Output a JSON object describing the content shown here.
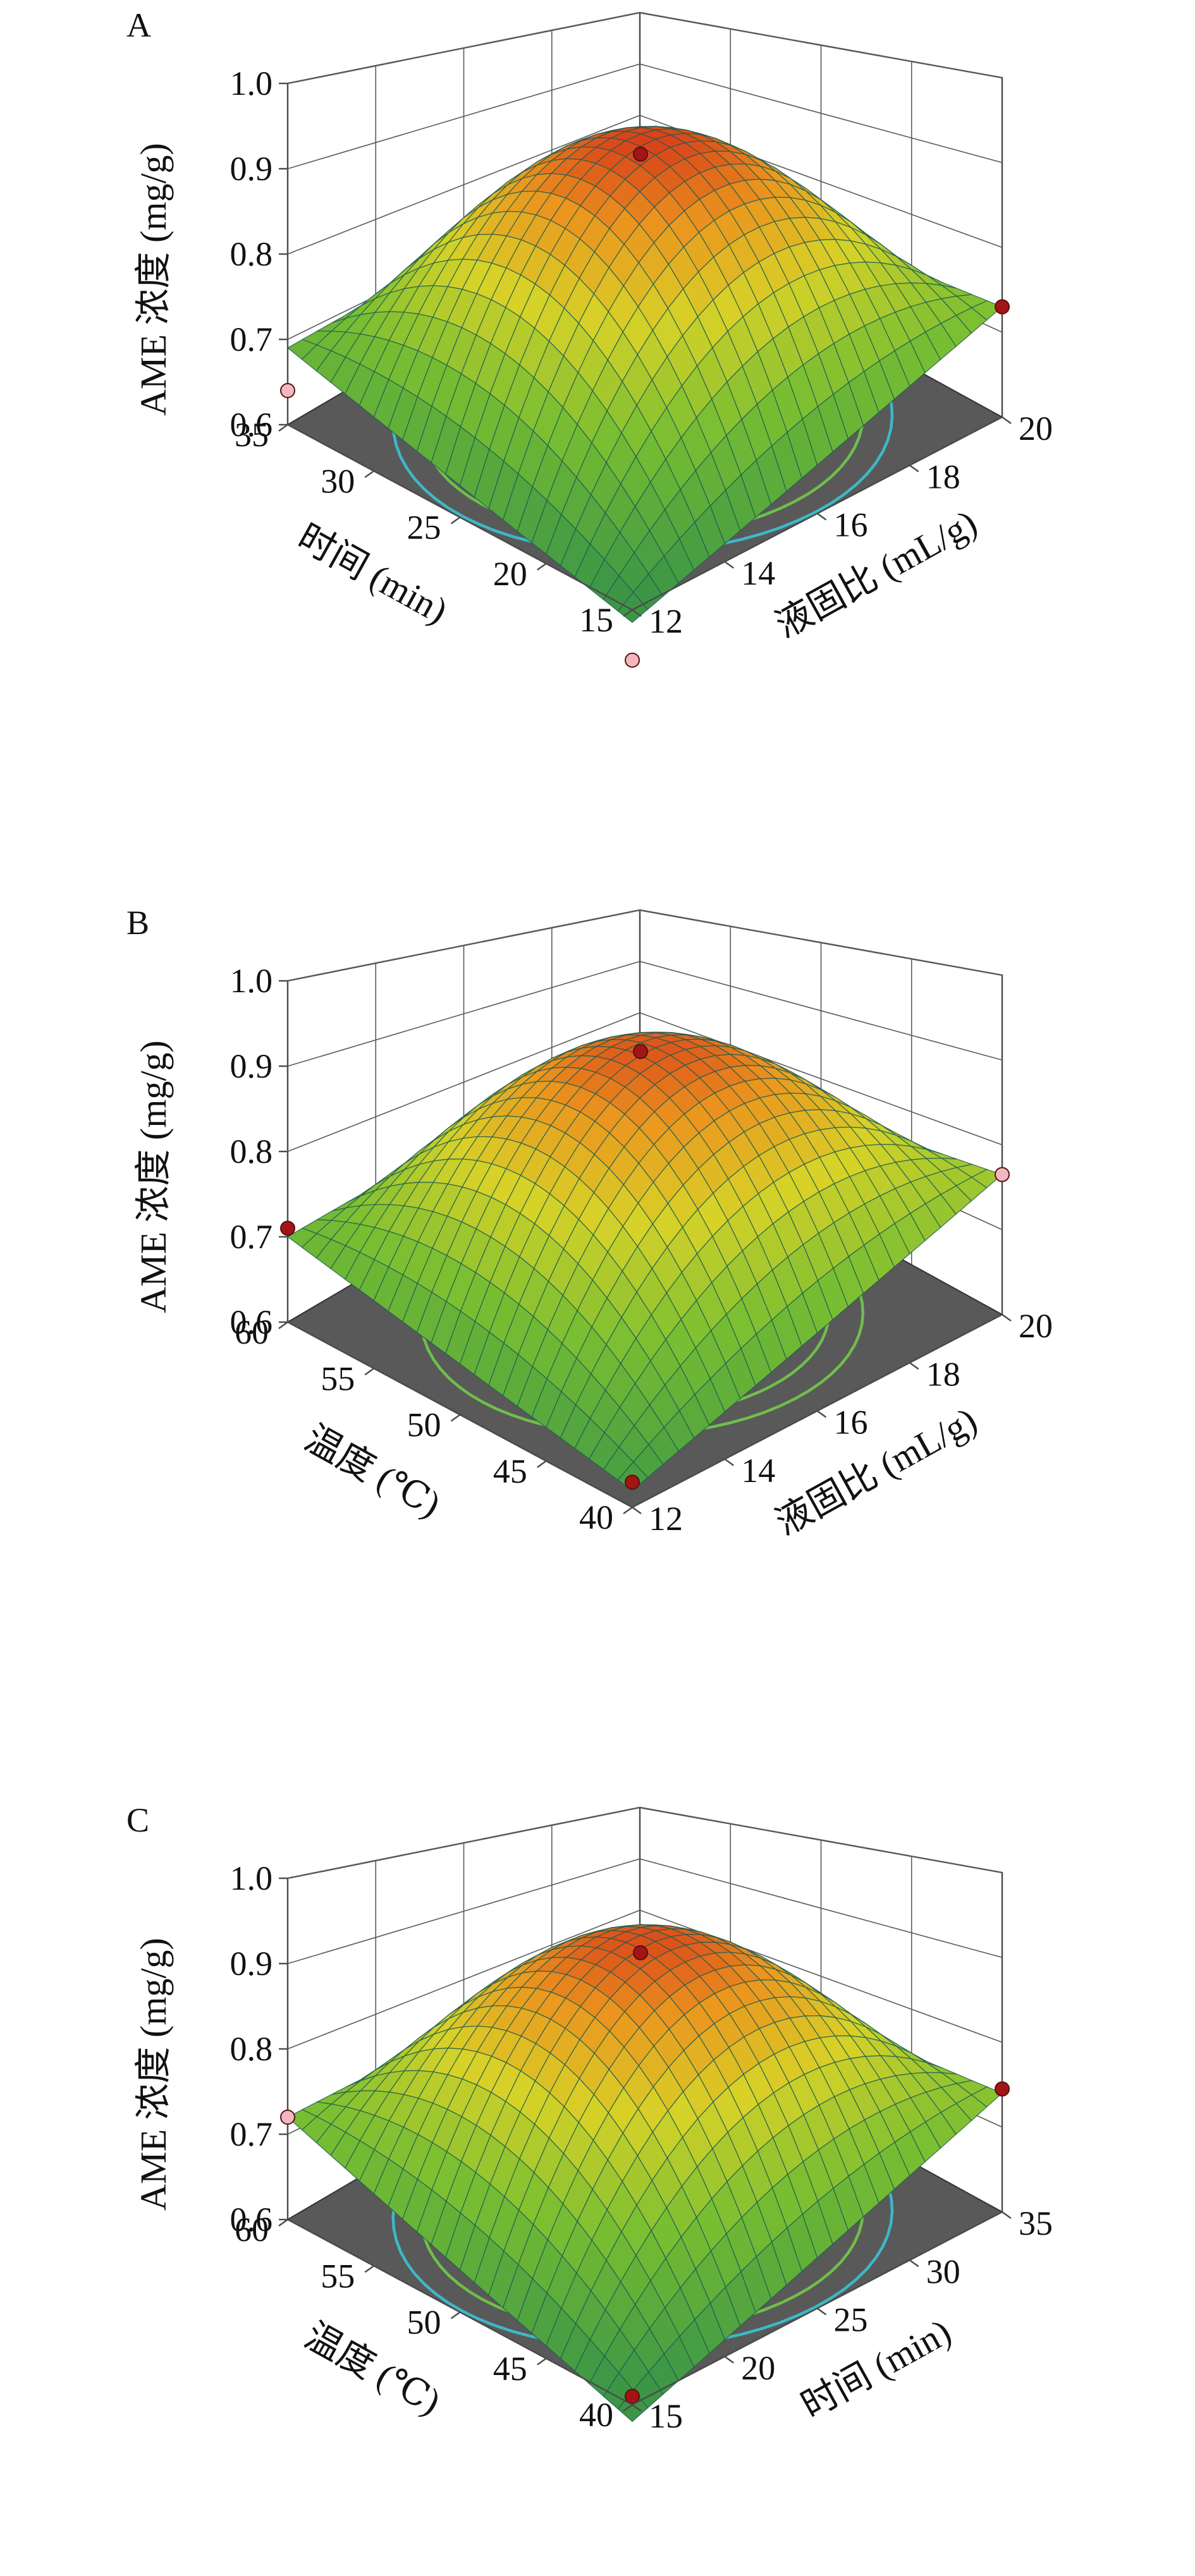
{
  "chart_data": [
    {
      "type": "surface3d",
      "panel_label": "A",
      "zlabel": "AME 浓度 (mg/g)",
      "xlabel": "液固比 (mL/g)",
      "ylabel": "时间 (min)",
      "x_ticks": [
        12,
        14,
        16,
        18,
        20
      ],
      "y_ticks": [
        15,
        20,
        25,
        30,
        35
      ],
      "z_ticks": [
        0.6,
        0.7,
        0.8,
        0.9,
        1.0
      ],
      "xlim": [
        12,
        20
      ],
      "ylim": [
        15,
        35
      ],
      "zlim": [
        0.6,
        1.0
      ],
      "surface": {
        "peak_x": 16,
        "peak_y": 25,
        "peak_z": 0.955,
        "corners": {
          "xmin_ymin": 0.585,
          "xmax_ymin": 0.73,
          "xmin_ymax": 0.69,
          "xmax_ymax": 0.72
        }
      },
      "design_points": [
        {
          "x": 16,
          "y": 25,
          "z": 0.945,
          "color": "#a31515"
        },
        {
          "x": 20,
          "y": 15,
          "z": 0.73,
          "color": "#a31515"
        },
        {
          "x": 12,
          "y": 35,
          "z": 0.64,
          "color": "#f2b8c0"
        },
        {
          "x": 12,
          "y": 15,
          "z": 0.54,
          "color": "#f2b8c0"
        }
      ],
      "contours": {
        "orange": [
          0.9,
          0.86
        ],
        "yellow": [
          0.8
        ],
        "green": [
          0.7,
          0.66
        ],
        "cyan": [
          0.6
        ]
      }
    },
    {
      "type": "surface3d",
      "panel_label": "B",
      "zlabel": "AME 浓度 (mg/g)",
      "xlabel": "液固比 (mL/g)",
      "ylabel": "温度 (℃)",
      "x_ticks": [
        12,
        14,
        16,
        18,
        20
      ],
      "y_ticks": [
        40,
        45,
        50,
        55,
        60
      ],
      "z_ticks": [
        0.6,
        0.7,
        0.8,
        0.9,
        1.0
      ],
      "xlim": [
        12,
        20
      ],
      "ylim": [
        40,
        60
      ],
      "zlim": [
        0.6,
        1.0
      ],
      "surface": {
        "peak_x": 16,
        "peak_y": 50,
        "peak_z": 0.94,
        "corners": {
          "xmin_ymin": 0.62,
          "xmax_ymin": 0.765,
          "xmin_ymax": 0.7,
          "xmax_ymax": 0.74
        }
      },
      "design_points": [
        {
          "x": 16,
          "y": 50,
          "z": 0.945,
          "color": "#a31515"
        },
        {
          "x": 12,
          "y": 60,
          "z": 0.71,
          "color": "#a31515"
        },
        {
          "x": 20,
          "y": 40,
          "z": 0.765,
          "color": "#f2b8c0"
        },
        {
          "x": 12,
          "y": 40,
          "z": 0.63,
          "color": "#a31515"
        }
      ],
      "contours": {
        "orange": [
          0.9,
          0.86
        ],
        "yellow": [
          0.8
        ],
        "green": [
          0.7,
          0.66
        ],
        "cyan": []
      }
    },
    {
      "type": "surface3d",
      "panel_label": "C",
      "zlabel": "AME 浓度 (mg/g)",
      "xlabel": "时间 (min)",
      "ylabel": "温度 (℃)",
      "x_ticks": [
        15,
        20,
        25,
        30,
        35
      ],
      "y_ticks": [
        40,
        45,
        50,
        55,
        60
      ],
      "z_ticks": [
        0.6,
        0.7,
        0.8,
        0.9,
        1.0
      ],
      "xlim": [
        15,
        35
      ],
      "ylim": [
        40,
        60
      ],
      "zlim": [
        0.6,
        1.0
      ],
      "surface": {
        "peak_x": 25,
        "peak_y": 50,
        "peak_z": 0.945,
        "corners": {
          "xmin_ymin": 0.58,
          "xmax_ymin": 0.74,
          "xmin_ymax": 0.72,
          "xmax_ymax": 0.74
        }
      },
      "design_points": [
        {
          "x": 25,
          "y": 50,
          "z": 0.94,
          "color": "#a31515"
        },
        {
          "x": 35,
          "y": 40,
          "z": 0.745,
          "color": "#a31515"
        },
        {
          "x": 15,
          "y": 60,
          "z": 0.72,
          "color": "#f2b8c0"
        },
        {
          "x": 15,
          "y": 40,
          "z": 0.61,
          "color": "#a31515"
        }
      ],
      "contours": {
        "orange": [
          0.9,
          0.86
        ],
        "yellow": [
          0.8
        ],
        "green": [
          0.7,
          0.66
        ],
        "cyan": [
          0.6
        ]
      }
    }
  ]
}
